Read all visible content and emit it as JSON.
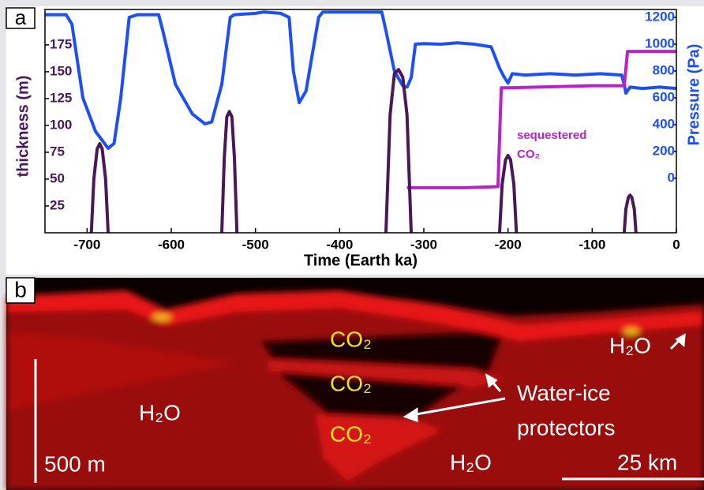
{
  "chart_data": {
    "type": "line",
    "panel_label": "a",
    "xlabel": "Time (Earth ka)",
    "ylabel": "thickness (m)",
    "y2label": "Pressure (Pa)",
    "annotation": [
      "sequestered",
      "CO₂"
    ],
    "xlim": [
      -750,
      0
    ],
    "xticks": [
      -700,
      -600,
      -500,
      -400,
      -300,
      -200,
      -100,
      0
    ],
    "ylim": [
      0,
      208
    ],
    "yticks": [
      25,
      50,
      75,
      100,
      125,
      150,
      175
    ],
    "y2lim": [
      -406,
      1259
    ],
    "y2ticks": [
      0,
      200,
      400,
      600,
      800,
      1000,
      1200
    ],
    "series": [
      {
        "color": "#1e4ff2",
        "axis": "y2",
        "x": [
          -750,
          -725,
          -718,
          -705,
          -690,
          -675,
          -668,
          -660,
          -650,
          -640,
          -615,
          -610,
          -595,
          -575,
          -560,
          -552,
          -540,
          -530,
          -525,
          -500,
          -490,
          -470,
          -460,
          -455,
          -448,
          -440,
          -425,
          -420,
          -400,
          -385,
          -350,
          -345,
          -335,
          -325,
          -320,
          -315,
          -310,
          -300,
          -280,
          -260,
          -240,
          -220,
          -215,
          -210,
          -205,
          -200,
          -195,
          -180,
          -150,
          -120,
          -90,
          -65,
          -62,
          -60,
          -55,
          -40,
          -20,
          0
        ],
        "values": [
          1220,
          1220,
          1150,
          600,
          350,
          224,
          260,
          600,
          1200,
          1220,
          1220,
          1100,
          700,
          480,
          406,
          420,
          700,
          1200,
          1220,
          1230,
          1240,
          1230,
          1200,
          800,
          565,
          650,
          1200,
          1240,
          1240,
          1240,
          1240,
          1100,
          800,
          690,
          680,
          750,
          1000,
          1005,
          1000,
          1010,
          1000,
          980,
          900,
          820,
          760,
          710,
          780,
          770,
          780,
          770,
          780,
          770,
          700,
          635,
          680,
          670,
          680,
          670
        ]
      },
      {
        "color": "#b722c9",
        "axis": "y",
        "x": [
          -320,
          -300,
          -250,
          -212,
          -208,
          -200,
          -150,
          -100,
          -62,
          -58,
          -30,
          0
        ],
        "values": [
          42,
          42,
          42,
          43,
          135,
          135,
          136,
          137,
          137,
          169,
          169,
          169
        ]
      },
      {
        "color": "#4a1858",
        "axis": "y",
        "x": [
          -695,
          -692,
          -688,
          -685,
          -682,
          -678,
          -675,
          null,
          -540,
          -537,
          -534,
          -531,
          -528,
          -525,
          -522,
          null,
          -345,
          -340,
          -335,
          -330,
          -325,
          -320,
          -315,
          null,
          -210,
          -207,
          -203,
          -200,
          -197,
          -193,
          -190,
          null,
          -62,
          -60,
          -57,
          -55,
          -53,
          -50,
          -48
        ],
        "values": [
          0,
          50,
          78,
          83,
          78,
          50,
          0,
          null,
          0,
          70,
          108,
          113,
          108,
          70,
          0,
          null,
          0,
          110,
          148,
          152,
          145,
          110,
          0,
          null,
          0,
          45,
          68,
          72,
          68,
          45,
          0,
          null,
          0,
          22,
          33,
          35,
          33,
          22,
          0
        ]
      }
    ]
  },
  "panel_b": {
    "panel_label": "b",
    "co2": [
      "CO₂",
      "CO₂",
      "CO₂"
    ],
    "h2o": [
      "H₂O",
      "H₂O",
      "H₂O"
    ],
    "callout": [
      "Water-ice",
      "protectors"
    ],
    "scale_vertical": "500 m",
    "scale_horizontal": "25 km"
  }
}
